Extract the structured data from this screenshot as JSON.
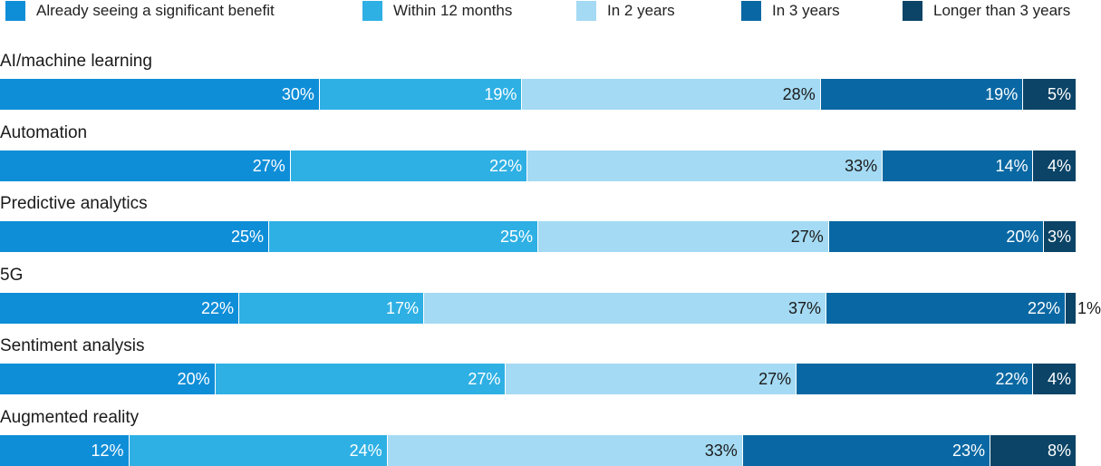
{
  "chart_data": {
    "type": "bar",
    "orientation": "horizontal",
    "stacked": true,
    "title": "",
    "xlabel": "",
    "ylabel": "",
    "xlim": [
      0,
      100
    ],
    "grid": false,
    "legend_position": "top",
    "categories": [
      "AI/machine learning",
      "Automation",
      "Predictive analytics",
      "5G",
      "Sentiment analysis",
      "Augmented reality"
    ],
    "series": [
      {
        "name": "Already seeing a significant benefit",
        "color": "#0f8ed8",
        "label_color": "#ffffff",
        "values": [
          30,
          27,
          25,
          22,
          20,
          12
        ]
      },
      {
        "name": "Within 12 months",
        "color": "#2eb0e4",
        "label_color": "#ffffff",
        "values": [
          19,
          22,
          25,
          17,
          27,
          24
        ]
      },
      {
        "name": "In 2 years",
        "color": "#a4daf3",
        "label_color": "#1a1a1a",
        "values": [
          28,
          33,
          27,
          37,
          27,
          33
        ]
      },
      {
        "name": "In 3 years",
        "color": "#0968a3",
        "label_color": "#ffffff",
        "values": [
          19,
          14,
          20,
          22,
          22,
          23
        ]
      },
      {
        "name": "Longer than 3 years",
        "color": "#0b4467",
        "label_color": "#ffffff",
        "values": [
          5,
          4,
          3,
          1,
          4,
          8
        ]
      }
    ]
  }
}
